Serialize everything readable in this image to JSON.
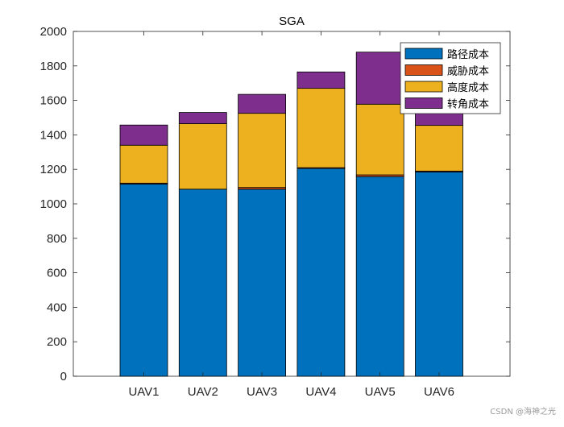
{
  "chart_data": {
    "type": "bar",
    "stacked": true,
    "title": "SGA",
    "xlabel": "",
    "ylabel": "",
    "categories": [
      "UAV1",
      "UAV2",
      "UAV3",
      "UAV4",
      "UAV5",
      "UAV6"
    ],
    "ylim": [
      0,
      2000
    ],
    "yticks": [
      0,
      200,
      400,
      600,
      800,
      1000,
      1200,
      1400,
      1600,
      1800,
      2000
    ],
    "grid": false,
    "legend_position": "top-right",
    "series": [
      {
        "name": "路径成本",
        "color": "#0072BD",
        "values": [
          1115,
          1085,
          1085,
          1205,
          1158,
          1185
        ]
      },
      {
        "name": "威胁成本",
        "color": "#D95319",
        "values": [
          5,
          0,
          10,
          5,
          10,
          5
        ]
      },
      {
        "name": "高度成本",
        "color": "#EDB120",
        "values": [
          220,
          380,
          430,
          460,
          410,
          265
        ]
      },
      {
        "name": "转角成本",
        "color": "#7E2F8E",
        "values": [
          117,
          65,
          110,
          95,
          302,
          85
        ]
      }
    ]
  },
  "watermark": "CSDN @海神之光"
}
